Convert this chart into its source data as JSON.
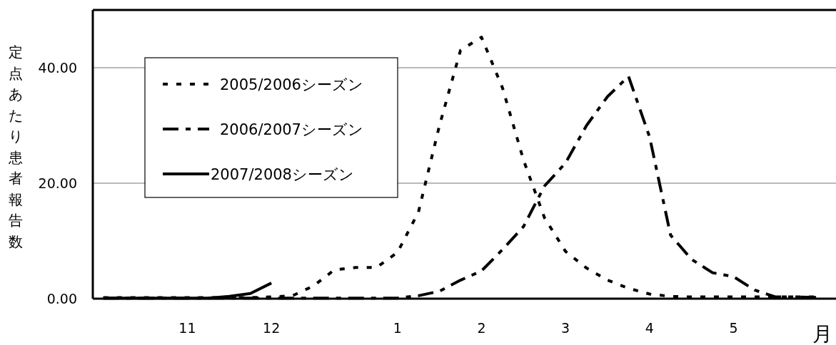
{
  "chart_data": {
    "type": "line",
    "ylabel": "定点あたり患者報告数",
    "xlabel": "月",
    "categories": [
      null,
      null,
      null,
      null,
      "11",
      null,
      null,
      null,
      "12",
      null,
      null,
      null,
      null,
      null,
      "1",
      null,
      null,
      null,
      "2",
      null,
      null,
      null,
      "3",
      null,
      null,
      null,
      "4",
      null,
      null,
      null,
      "5",
      null,
      null,
      null,
      null
    ],
    "series": [
      {
        "name": "2005/2006シーズン",
        "color": "#000000",
        "line_style": "dotted",
        "values": [
          0.2,
          0.2,
          0.2,
          0.2,
          0.2,
          0.2,
          0.2,
          0.2,
          0.3,
          0.5,
          2.2,
          5.0,
          5.4,
          5.4,
          8,
          15,
          30,
          43,
          45.3,
          36.5,
          24,
          14,
          8.2,
          5.3,
          3.2,
          1.8,
          0.8,
          0.4,
          0.3,
          0.3,
          0.3,
          0.3,
          0.3,
          0.3,
          0.3
        ]
      },
      {
        "name": "2006/2007シーズン",
        "color": "#000000",
        "line_style": "dashed",
        "values": [
          0.1,
          0.1,
          0.1,
          0.1,
          0.1,
          0.1,
          0.1,
          0.1,
          0.1,
          0.1,
          0.1,
          0.1,
          0.1,
          0.1,
          0.1,
          0.5,
          1.3,
          3.2,
          4.8,
          8.5,
          12.5,
          19.5,
          23.5,
          30,
          35,
          38.5,
          28,
          11,
          6.8,
          4.5,
          3.8,
          1.5,
          0.3,
          0.3,
          0.2
        ]
      },
      {
        "name": "2007/2008シーズン",
        "color": "#000000",
        "line_style": "solid",
        "values": [
          0.1,
          0.1,
          0.1,
          0.1,
          0.1,
          0.1,
          0.4,
          0.9,
          2.7,
          null,
          null,
          null,
          null,
          null,
          null,
          null,
          null,
          null,
          null,
          null,
          null,
          null,
          null,
          null,
          null,
          null,
          null,
          null,
          null,
          null,
          null,
          null,
          null,
          null,
          null
        ]
      }
    ],
    "ylim": [
      0,
      50
    ],
    "yticks": [
      {
        "value": 0,
        "label": "0.00"
      },
      {
        "value": 20,
        "label": "20.00"
      },
      {
        "value": 40,
        "label": "40.00"
      }
    ],
    "grid": "y",
    "legend": "top left",
    "marker": "none"
  }
}
